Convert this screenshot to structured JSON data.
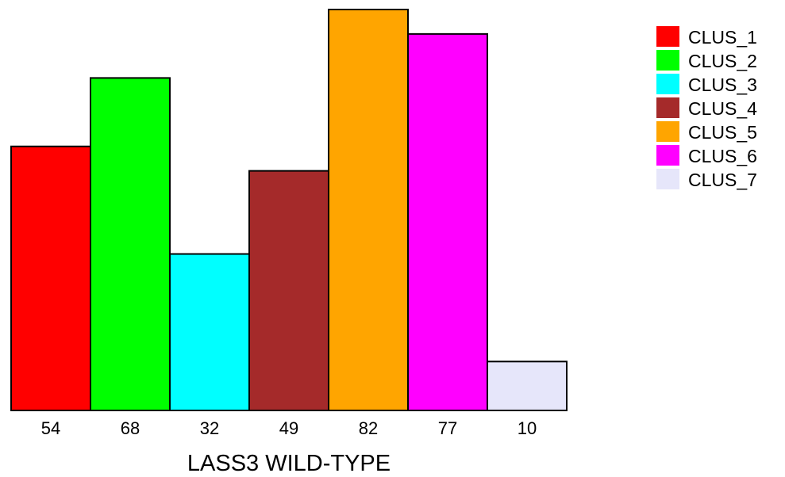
{
  "chart_data": {
    "type": "bar",
    "categories": [
      "CLUS_1",
      "CLUS_2",
      "CLUS_3",
      "CLUS_4",
      "CLUS_5",
      "CLUS_6",
      "CLUS_7"
    ],
    "values": [
      54,
      68,
      32,
      49,
      82,
      77,
      10
    ],
    "tick_labels": [
      "54",
      "68",
      "32",
      "49",
      "82",
      "77",
      "10"
    ],
    "colors": [
      "#ff0000",
      "#00ff00",
      "#00ffff",
      "#a52a2a",
      "#ffa500",
      "#ff00ff",
      "#e6e6fa"
    ],
    "xlabel": "LASS3 WILD-TYPE",
    "ylabel": "",
    "ylim": [
      0,
      82
    ],
    "grid": false,
    "legend": {
      "position": "top-right",
      "entries": [
        "CLUS_1",
        "CLUS_2",
        "CLUS_3",
        "CLUS_4",
        "CLUS_5",
        "CLUS_6",
        "CLUS_7"
      ]
    }
  }
}
